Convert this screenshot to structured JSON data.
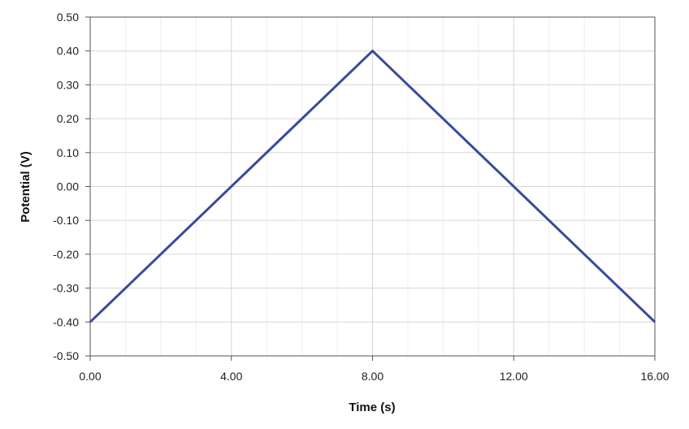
{
  "chart_data": {
    "type": "line",
    "title": "",
    "xlabel": "Time (s)",
    "ylabel": "Potential (V)",
    "xlim": [
      0,
      16
    ],
    "ylim": [
      -0.5,
      0.5
    ],
    "x_ticks": [
      "0.00",
      "4.00",
      "8.00",
      "12.00",
      "16.00"
    ],
    "y_ticks": [
      "0.50",
      "0.40",
      "0.30",
      "0.20",
      "0.10",
      "0.00",
      "-0.10",
      "-0.20",
      "-0.30",
      "-0.40",
      "-0.50"
    ],
    "grid": true,
    "line_color": "#3a4a9a",
    "series": [
      {
        "x": [
          0,
          8,
          16
        ],
        "y": [
          -0.4,
          0.4,
          -0.4
        ]
      }
    ]
  }
}
